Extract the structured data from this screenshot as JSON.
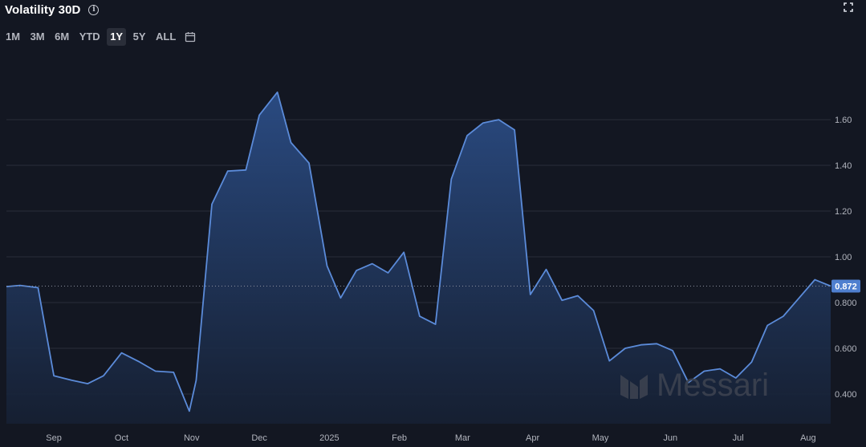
{
  "header": {
    "title": "Volatility 30D",
    "info_icon": "info-icon",
    "fullscreen_icon": "fullscreen-icon"
  },
  "ranges": [
    {
      "label": "1M",
      "active": false
    },
    {
      "label": "3M",
      "active": false
    },
    {
      "label": "6M",
      "active": false
    },
    {
      "label": "YTD",
      "active": false
    },
    {
      "label": "1Y",
      "active": true
    },
    {
      "label": "5Y",
      "active": false
    },
    {
      "label": "ALL",
      "active": false
    }
  ],
  "calendar_icon": "calendar-icon",
  "watermark": {
    "text": "Messari",
    "icon": "messari-logo-icon"
  },
  "colors": {
    "background": "#131722",
    "line": "#5b8bd9",
    "last_value_badge": "#4f7fcf",
    "grid": "#2a2e39"
  },
  "chart_data": {
    "type": "area",
    "title": "Volatility 30D",
    "xlabel": "",
    "ylabel": "",
    "ylim": [
      0.27,
      1.86
    ],
    "y_ticks": [
      0.4,
      0.6,
      0.8,
      1.0,
      1.2,
      1.4,
      1.6
    ],
    "y_tick_labels": [
      "0.400",
      "0.600",
      "0.800",
      "1.00",
      "1.20",
      "1.40",
      "1.60"
    ],
    "x_ticks": [
      {
        "label": "Sep",
        "date": "2024-09-01"
      },
      {
        "label": "Oct",
        "date": "2024-10-01"
      },
      {
        "label": "Nov",
        "date": "2024-11-01"
      },
      {
        "label": "Dec",
        "date": "2024-12-01"
      },
      {
        "label": "2025",
        "date": "2025-01-01"
      },
      {
        "label": "Feb",
        "date": "2025-02-01"
      },
      {
        "label": "Mar",
        "date": "2025-03-01"
      },
      {
        "label": "Apr",
        "date": "2025-04-01"
      },
      {
        "label": "May",
        "date": "2025-05-01"
      },
      {
        "label": "Jun",
        "date": "2025-06-01"
      },
      {
        "label": "Jul",
        "date": "2025-07-01"
      },
      {
        "label": "Aug",
        "date": "2025-08-01"
      }
    ],
    "x_range": [
      "2024-08-11",
      "2025-08-11"
    ],
    "last_value": 0.872,
    "last_value_label": "0.872",
    "grid": true,
    "series": [
      {
        "points": [
          [
            "2024-08-11",
            0.87
          ],
          [
            "2024-08-17",
            0.875
          ],
          [
            "2024-08-25",
            0.865
          ],
          [
            "2024-09-01",
            0.48
          ],
          [
            "2024-09-09",
            0.46
          ],
          [
            "2024-09-16",
            0.445
          ],
          [
            "2024-09-23",
            0.48
          ],
          [
            "2024-10-01",
            0.58
          ],
          [
            "2024-10-09",
            0.54
          ],
          [
            "2024-10-16",
            0.5
          ],
          [
            "2024-10-24",
            0.495
          ],
          [
            "2024-10-31",
            0.325
          ],
          [
            "2024-11-03",
            0.46
          ],
          [
            "2024-11-10",
            1.23
          ],
          [
            "2024-11-17",
            1.375
          ],
          [
            "2024-11-25",
            1.38
          ],
          [
            "2024-12-01",
            1.62
          ],
          [
            "2024-12-09",
            1.72
          ],
          [
            "2024-12-15",
            1.5
          ],
          [
            "2024-12-23",
            1.41
          ],
          [
            "2024-12-31",
            0.96
          ],
          [
            "2025-01-06",
            0.82
          ],
          [
            "2025-01-13",
            0.94
          ],
          [
            "2025-01-20",
            0.97
          ],
          [
            "2025-01-27",
            0.93
          ],
          [
            "2025-02-03",
            1.02
          ],
          [
            "2025-02-10",
            0.74
          ],
          [
            "2025-02-17",
            0.705
          ],
          [
            "2025-02-24",
            1.34
          ],
          [
            "2025-03-03",
            1.53
          ],
          [
            "2025-03-10",
            1.585
          ],
          [
            "2025-03-17",
            1.6
          ],
          [
            "2025-03-24",
            1.555
          ],
          [
            "2025-03-31",
            0.835
          ],
          [
            "2025-04-07",
            0.945
          ],
          [
            "2025-04-14",
            0.81
          ],
          [
            "2025-04-21",
            0.83
          ],
          [
            "2025-04-28",
            0.765
          ],
          [
            "2025-05-05",
            0.545
          ],
          [
            "2025-05-12",
            0.6
          ],
          [
            "2025-05-19",
            0.615
          ],
          [
            "2025-05-26",
            0.62
          ],
          [
            "2025-06-02",
            0.59
          ],
          [
            "2025-06-09",
            0.45
          ],
          [
            "2025-06-16",
            0.5
          ],
          [
            "2025-06-23",
            0.51
          ],
          [
            "2025-06-30",
            0.47
          ],
          [
            "2025-07-07",
            0.54
          ],
          [
            "2025-07-14",
            0.7
          ],
          [
            "2025-07-21",
            0.74
          ],
          [
            "2025-07-28",
            0.82
          ],
          [
            "2025-08-04",
            0.9
          ],
          [
            "2025-08-11",
            0.872
          ]
        ]
      }
    ]
  }
}
